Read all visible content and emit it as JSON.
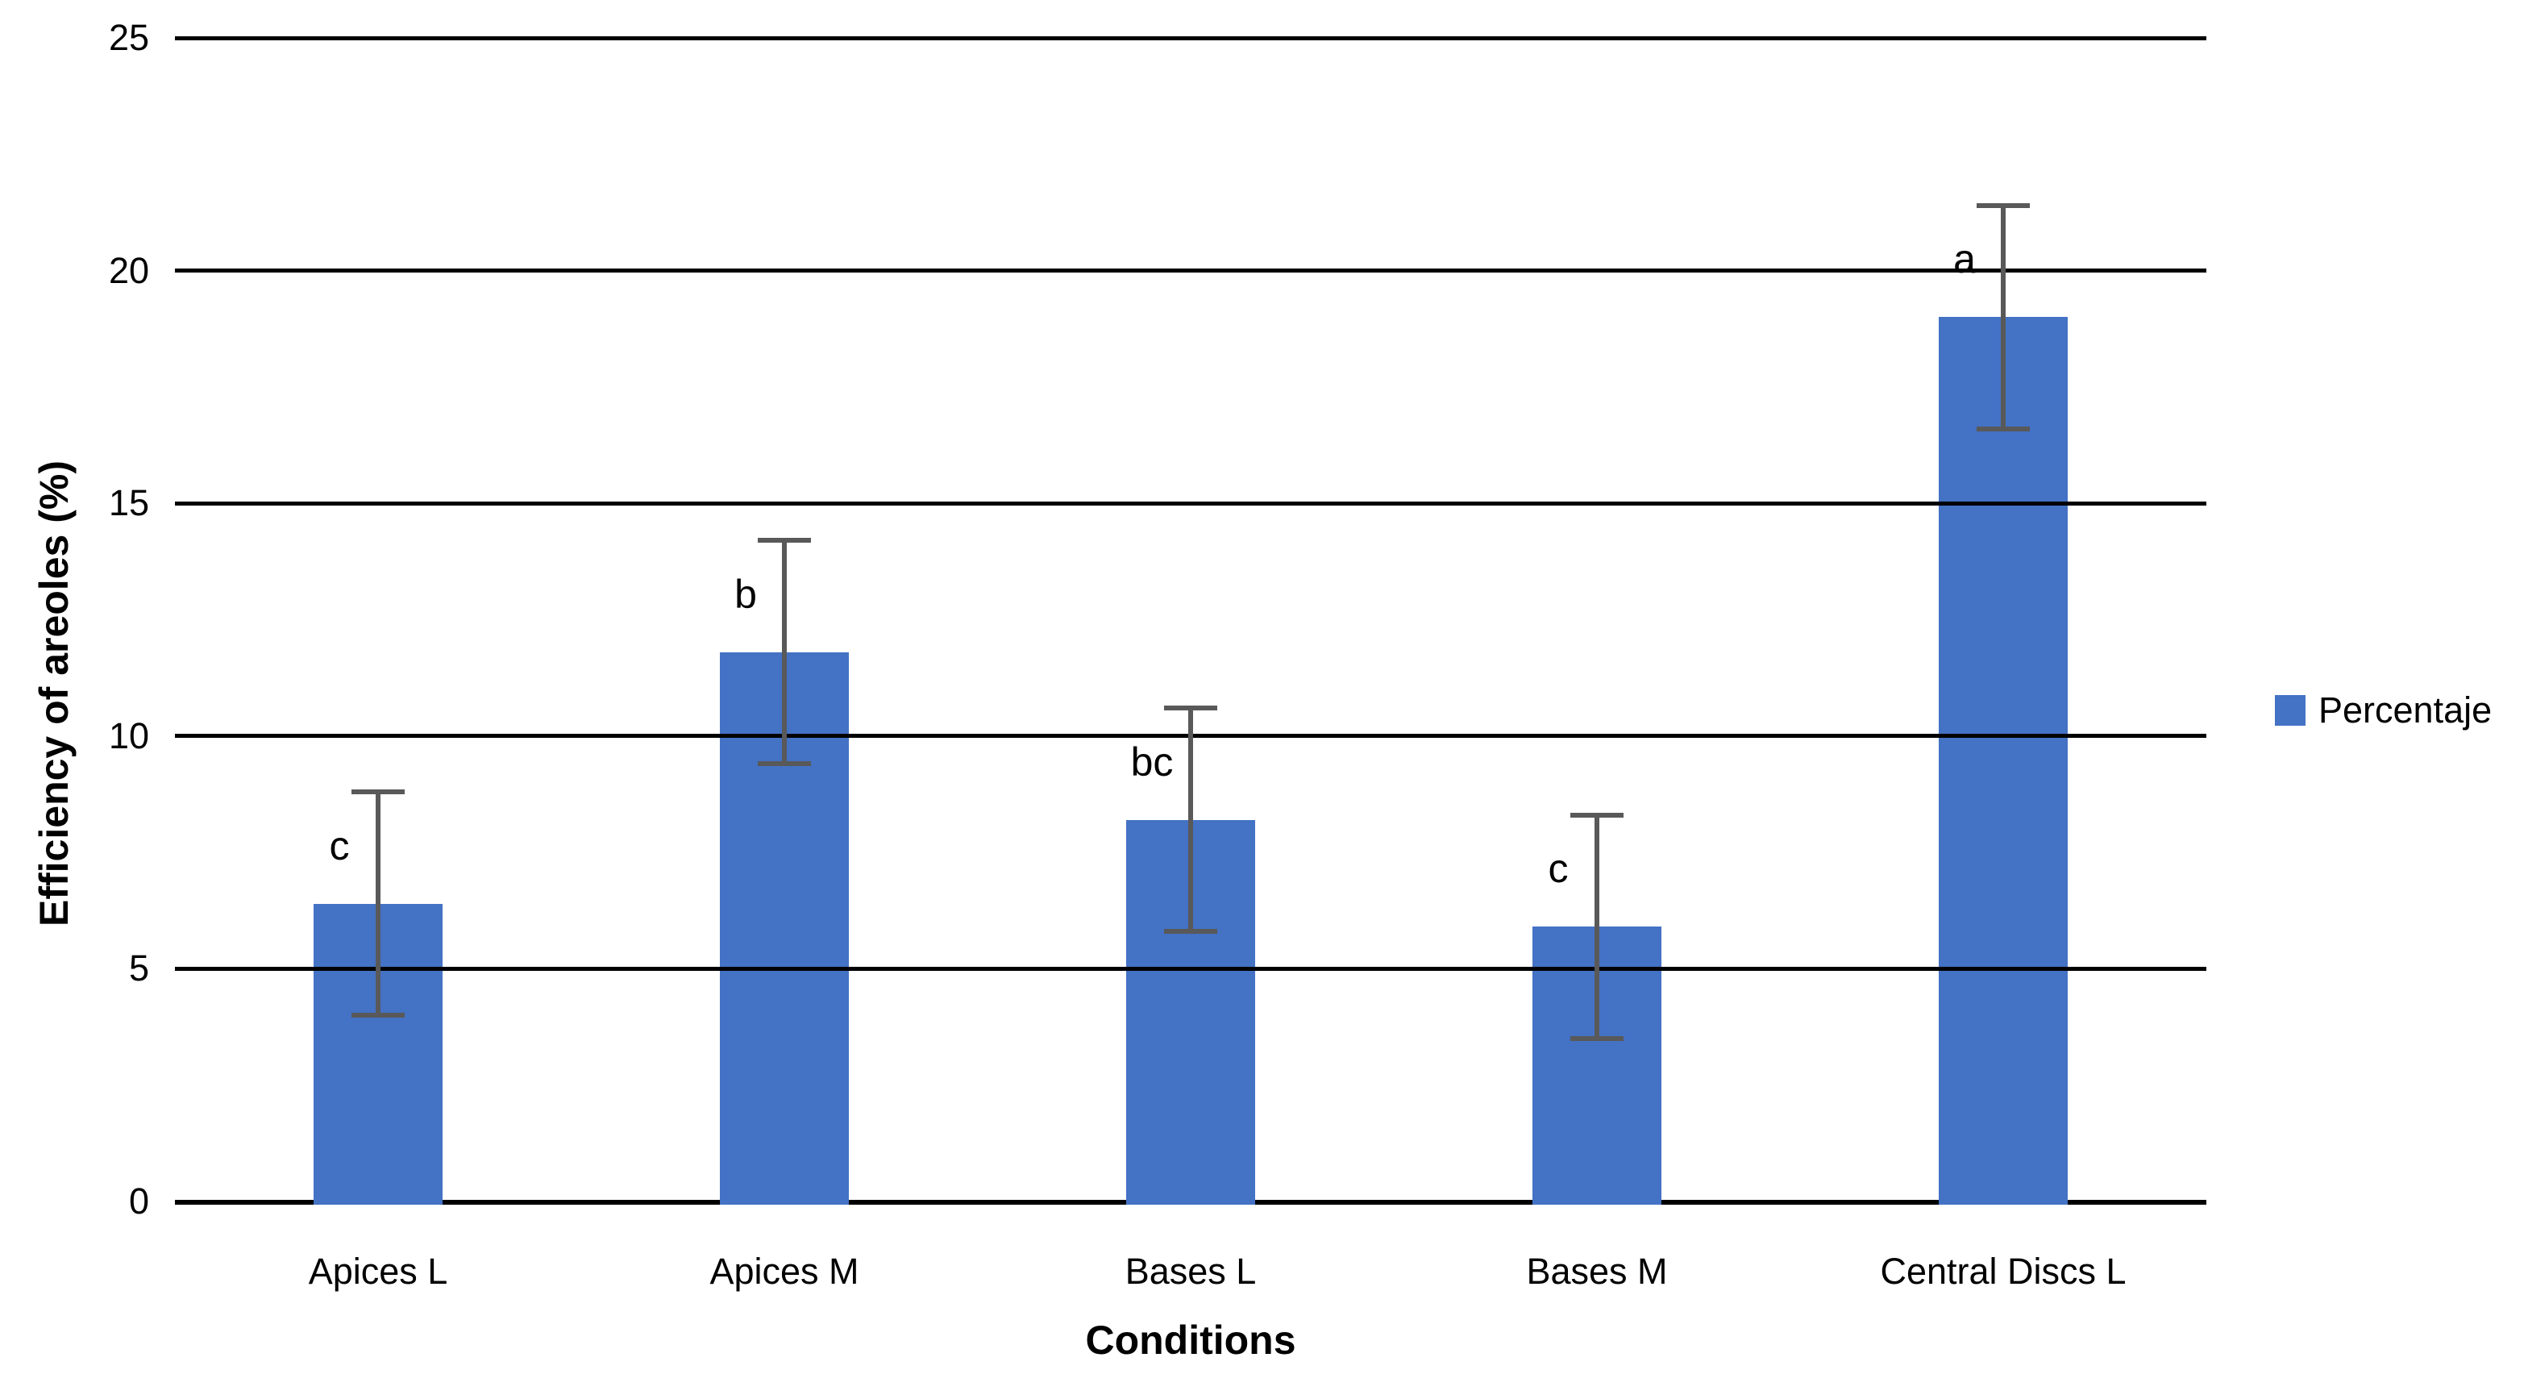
{
  "chart_data": {
    "type": "bar",
    "title": "",
    "xlabel": "Conditions",
    "ylabel": "Efficiency of areoles (%)",
    "categories": [
      "Apices L",
      "Apices M",
      "Bases L",
      "Bases M",
      "Central Discs L"
    ],
    "series": [
      {
        "name": "Percentaje",
        "values": [
          6.4,
          11.8,
          8.2,
          5.9,
          19.0
        ]
      }
    ],
    "error_bars": {
      "plus": [
        2.4,
        2.4,
        2.4,
        2.4,
        2.4
      ],
      "minus": [
        2.4,
        2.4,
        2.4,
        2.4,
        2.4
      ]
    },
    "significance_letters": [
      "c",
      "b",
      "bc",
      "c",
      "a"
    ],
    "ylim": [
      0,
      25
    ],
    "yticks": [
      0,
      5,
      10,
      15,
      20,
      25
    ],
    "grid": "horizontal",
    "legend": {
      "position": "right",
      "entries": [
        "Percentaje"
      ]
    },
    "colors": {
      "bar": "#4472C4",
      "error_bar": "#595959",
      "gridline": "#000000",
      "text": "#000000",
      "background": "#FFFFFF"
    }
  }
}
